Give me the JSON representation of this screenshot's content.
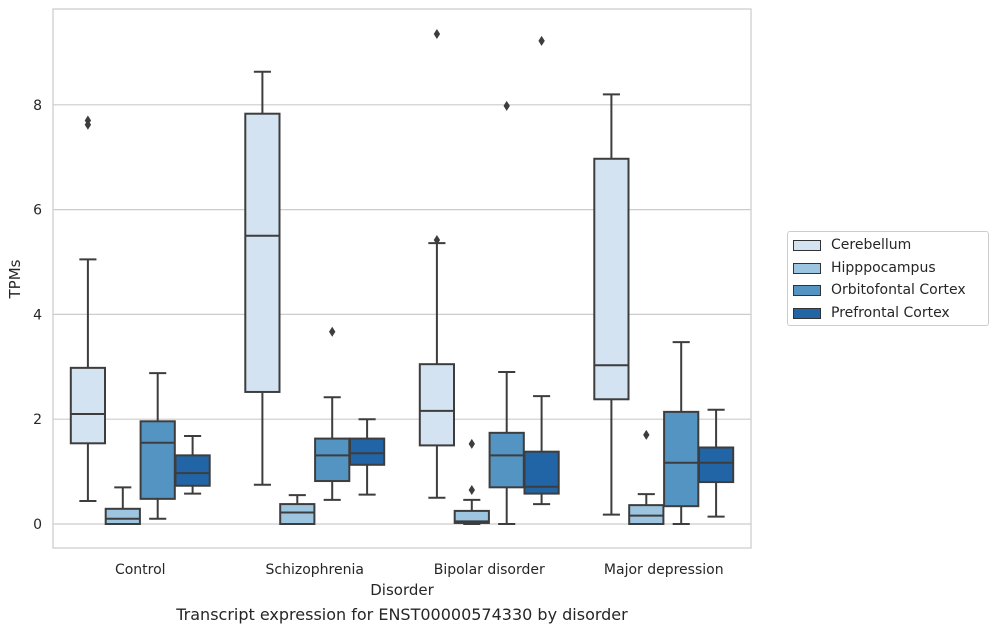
{
  "chart_data": {
    "type": "box",
    "xlabel": "Disorder",
    "ylabel": "TPMs",
    "ylim": [
      -0.45,
      9.7
    ],
    "yticks": [
      0,
      2,
      4,
      6,
      8
    ],
    "grid": "horizontal",
    "legend_position": "right",
    "categories": [
      "Control",
      "Schizophrenia",
      "Bipolar disorder",
      "Major depression"
    ],
    "series": [
      {
        "name": "Cerebellum",
        "color": "#d4e3f2",
        "boxes": [
          {
            "whisker_low": 0.44,
            "q1": 1.54,
            "median": 2.1,
            "q3": 2.98,
            "whisker_high": 5.05,
            "outliers": [
              7.62,
              7.7
            ]
          },
          {
            "whisker_low": 0.75,
            "q1": 2.52,
            "median": 5.5,
            "q3": 7.83,
            "whisker_high": 8.63,
            "outliers": []
          },
          {
            "whisker_low": 0.5,
            "q1": 1.5,
            "median": 2.16,
            "q3": 3.05,
            "whisker_high": 5.36,
            "outliers": [
              5.42,
              9.35
            ]
          },
          {
            "whisker_low": 0.18,
            "q1": 2.38,
            "median": 3.03,
            "q3": 6.97,
            "whisker_high": 8.2,
            "outliers": []
          }
        ]
      },
      {
        "name": "Hipppocampus",
        "color": "#9dc5df",
        "boxes": [
          {
            "whisker_low": 0.0,
            "q1": 0.0,
            "median": 0.1,
            "q3": 0.29,
            "whisker_high": 0.7,
            "outliers": []
          },
          {
            "whisker_low": 0.0,
            "q1": 0.0,
            "median": 0.22,
            "q3": 0.38,
            "whisker_high": 0.55,
            "outliers": []
          },
          {
            "whisker_low": 0.0,
            "q1": 0.02,
            "median": 0.05,
            "q3": 0.25,
            "whisker_high": 0.46,
            "outliers": [
              0.65,
              1.53
            ]
          },
          {
            "whisker_low": 0.0,
            "q1": 0.0,
            "median": 0.16,
            "q3": 0.36,
            "whisker_high": 0.57,
            "outliers": [
              1.7
            ]
          }
        ]
      },
      {
        "name": "Orbitofontal Cortex",
        "color": "#5394c3",
        "boxes": [
          {
            "whisker_low": 0.1,
            "q1": 0.48,
            "median": 1.55,
            "q3": 1.96,
            "whisker_high": 2.88,
            "outliers": []
          },
          {
            "whisker_low": 0.46,
            "q1": 0.82,
            "median": 1.31,
            "q3": 1.63,
            "whisker_high": 2.42,
            "outliers": [
              3.67
            ]
          },
          {
            "whisker_low": 0.0,
            "q1": 0.7,
            "median": 1.31,
            "q3": 1.74,
            "whisker_high": 2.9,
            "outliers": [
              7.98
            ]
          },
          {
            "whisker_low": 0.0,
            "q1": 0.34,
            "median": 1.17,
            "q3": 2.14,
            "whisker_high": 3.47,
            "outliers": []
          }
        ]
      },
      {
        "name": "Prefrontal Cortex",
        "color": "#2265a6",
        "boxes": [
          {
            "whisker_low": 0.58,
            "q1": 0.73,
            "median": 0.97,
            "q3": 1.31,
            "whisker_high": 1.68,
            "outliers": []
          },
          {
            "whisker_low": 0.56,
            "q1": 1.13,
            "median": 1.35,
            "q3": 1.63,
            "whisker_high": 2.0,
            "outliers": []
          },
          {
            "whisker_low": 0.38,
            "q1": 0.58,
            "median": 0.71,
            "q3": 1.38,
            "whisker_high": 2.44,
            "outliers": [
              9.22
            ]
          },
          {
            "whisker_low": 0.14,
            "q1": 0.8,
            "median": 1.17,
            "q3": 1.46,
            "whisker_high": 2.18,
            "outliers": []
          }
        ]
      }
    ]
  },
  "caption": "Transcript expression for ENST00000574330 by disorder"
}
